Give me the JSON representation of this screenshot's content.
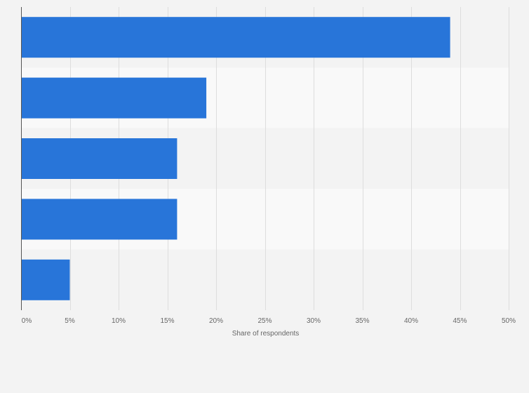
{
  "chart_data": {
    "type": "bar",
    "orientation": "horizontal",
    "categories": [
      "",
      "",
      "",
      "",
      ""
    ],
    "values": [
      44,
      19,
      16,
      16,
      5
    ],
    "title": "",
    "xlabel": "Share of respondents",
    "ylabel": "",
    "xlim": [
      0,
      50
    ],
    "x_ticks": [
      0,
      5,
      10,
      15,
      20,
      25,
      30,
      35,
      40,
      45,
      50
    ],
    "x_tick_labels": [
      "0%",
      "5%",
      "10%",
      "15%",
      "20%",
      "25%",
      "30%",
      "35%",
      "40%",
      "45%",
      "50%"
    ],
    "grid": "vertical",
    "legend": "none",
    "colors": {
      "bar": "#2875d9",
      "band_even": "#f3f3f3",
      "band_odd": "#f9f9f9",
      "grid": "#dddddd",
      "axis": "#555555",
      "tick_text": "#666666",
      "background": "#f3f3f3"
    }
  }
}
